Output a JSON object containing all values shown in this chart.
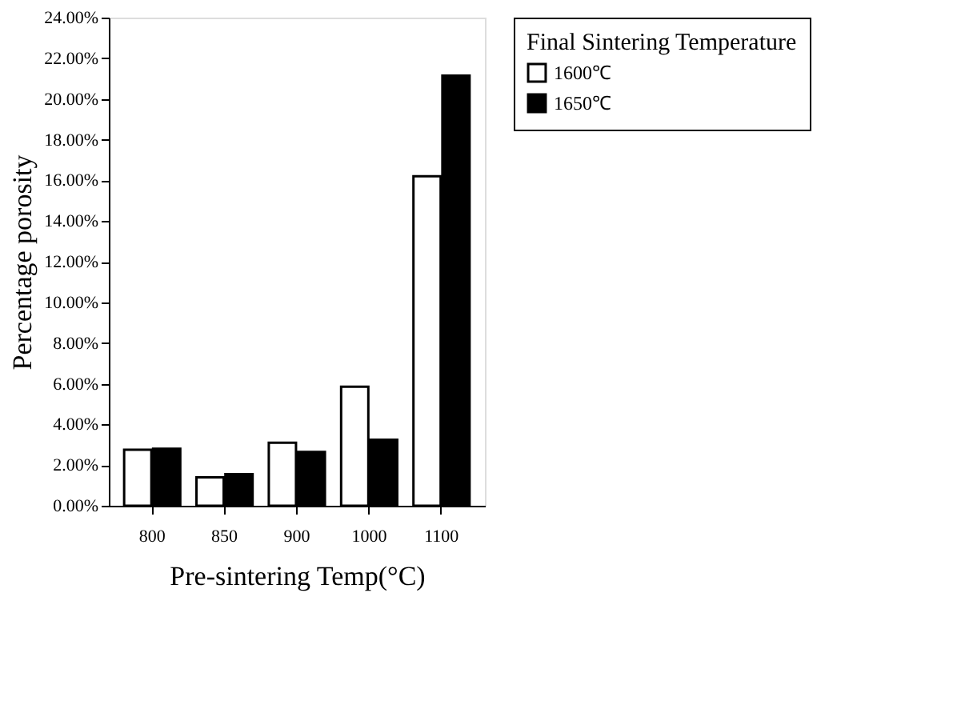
{
  "chart_data": {
    "type": "bar",
    "xlabel": "Pre-sintering Temp(°C)",
    "ylabel": "Percentage porosity",
    "legend_title": "Final Sintering Temperature",
    "legend": "right",
    "categories": [
      "800",
      "850",
      "900",
      "1000",
      "1100"
    ],
    "series": [
      {
        "name": "1600℃",
        "color": "#ffffff",
        "values": [
          2.75,
          1.4,
          3.1,
          5.85,
          16.2
        ]
      },
      {
        "name": "1650℃",
        "color": "#000000",
        "values": [
          2.8,
          1.55,
          2.65,
          3.25,
          21.15
        ]
      }
    ],
    "ylim": [
      0,
      24
    ],
    "yticks": [
      {
        "value": 0,
        "label": "0.00%"
      },
      {
        "value": 2,
        "label": "2.00%"
      },
      {
        "value": 4,
        "label": "4.00%"
      },
      {
        "value": 6,
        "label": "6.00%"
      },
      {
        "value": 8,
        "label": "8.00%"
      },
      {
        "value": 10,
        "label": "10.00%"
      },
      {
        "value": 12,
        "label": "12.00%"
      },
      {
        "value": 14,
        "label": "14.00%"
      },
      {
        "value": 16,
        "label": "16.00%"
      },
      {
        "value": 18,
        "label": "18.00%"
      },
      {
        "value": 20,
        "label": "20.00%"
      },
      {
        "value": 22,
        "label": "22.00%"
      },
      {
        "value": 24,
        "label": "24.00%"
      }
    ],
    "grid": false
  }
}
